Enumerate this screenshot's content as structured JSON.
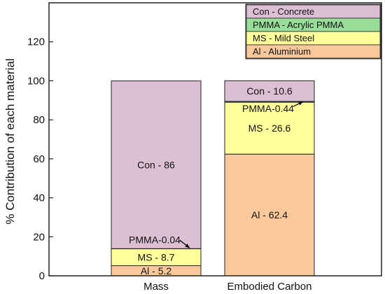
{
  "chart_data": {
    "type": "bar",
    "stacked": true,
    "ylabel": "% Contribution of each material",
    "xlabel": "",
    "ylim": [
      0,
      140
    ],
    "yticks": [
      0,
      20,
      40,
      60,
      80,
      100,
      120
    ],
    "grid": false,
    "legend_position": "top-right",
    "categories": [
      "Mass",
      "Embodied Carbon"
    ],
    "series": [
      {
        "name": "Al - Aluminium",
        "key": "Al",
        "values": [
          5.2,
          62.4
        ],
        "color": "#f9c99b",
        "labels": [
          "Al - 5.2",
          "Al - 62.4"
        ]
      },
      {
        "name": "MS - Mild Steel",
        "key": "MS",
        "values": [
          8.7,
          26.6
        ],
        "color": "#ffff9b",
        "labels": [
          "MS - 8.7",
          "MS - 26.6"
        ]
      },
      {
        "name": "PMMA - Acrylic PMMA",
        "key": "PMMA",
        "values": [
          0.04,
          0.44
        ],
        "color": "#99dd99",
        "labels": [
          "PMMA-0.04",
          "PMMA-0.44"
        ]
      },
      {
        "name": "Con - Concrete",
        "key": "Con",
        "values": [
          86,
          10.6
        ],
        "color": "#dcbfd2",
        "labels": [
          "Con - 86",
          "Con - 10.6"
        ]
      }
    ],
    "legend_order": [
      "Con",
      "PMMA",
      "MS",
      "Al"
    ]
  }
}
